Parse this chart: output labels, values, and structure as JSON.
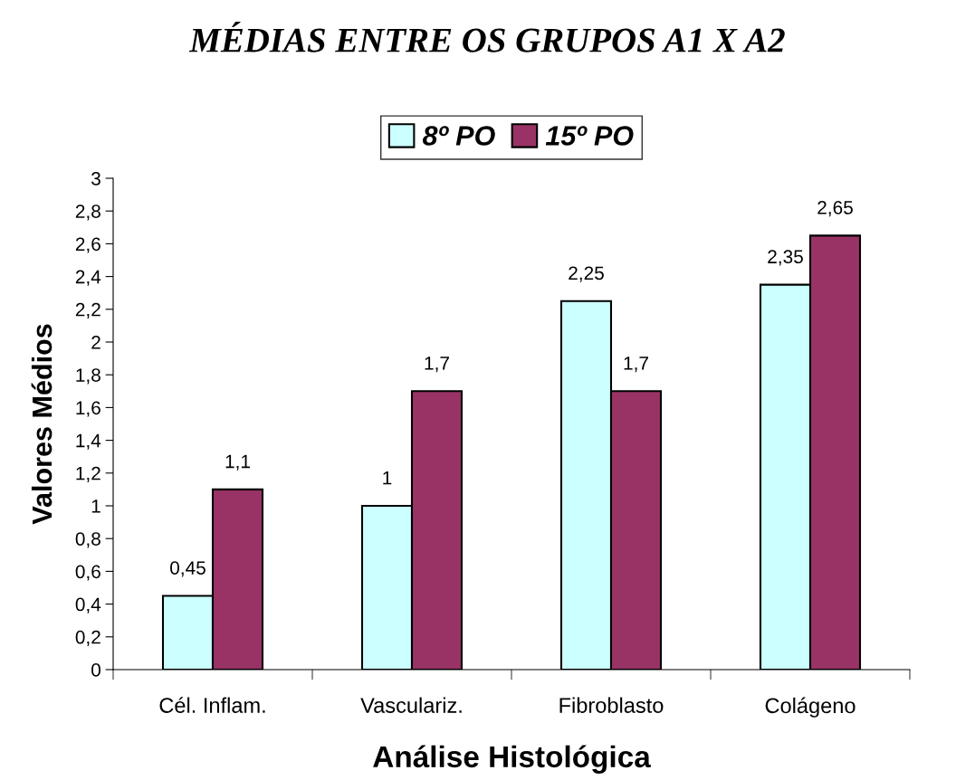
{
  "chart_data": {
    "type": "bar",
    "title": "MÉDIAS ENTRE OS GRUPOS A1 X A2",
    "xlabel": "Análise Histológica",
    "ylabel": "Valores Médios",
    "categories": [
      "Cél. Inflam.",
      "Vasculariz.",
      "Fibroblasto",
      "Colágeno"
    ],
    "series": [
      {
        "name": "8º PO",
        "color": "#ccffff",
        "values": [
          0.45,
          1,
          2.25,
          2.35
        ],
        "value_labels": [
          "0,45",
          "1",
          "2,25",
          "2,35"
        ]
      },
      {
        "name": "15º PO",
        "color": "#993366",
        "values": [
          1.1,
          1.7,
          1.7,
          2.65
        ],
        "value_labels": [
          "1,1",
          "1,7",
          "1,7",
          "2,65"
        ]
      }
    ],
    "ylim": [
      0,
      3
    ],
    "yticks": [
      0,
      {
        "value": 0.2,
        "label": "0,2"
      },
      {
        "value": 0.4,
        "label": "0,4"
      },
      {
        "value": 0.6,
        "label": "0,6"
      },
      {
        "value": 0.8,
        "label": "0,8"
      },
      1,
      {
        "value": 1.2,
        "label": "1,2"
      },
      {
        "value": 1.4,
        "label": "1,4"
      },
      {
        "value": 1.6,
        "label": "1,6"
      },
      {
        "value": 1.8,
        "label": "1,8"
      },
      2,
      {
        "value": 2.2,
        "label": "2,2"
      },
      {
        "value": 2.4,
        "label": "2,4"
      },
      {
        "value": 2.6,
        "label": "2,6"
      },
      {
        "value": 2.8,
        "label": "2,8"
      },
      3
    ],
    "grid": false,
    "legend": "top"
  }
}
